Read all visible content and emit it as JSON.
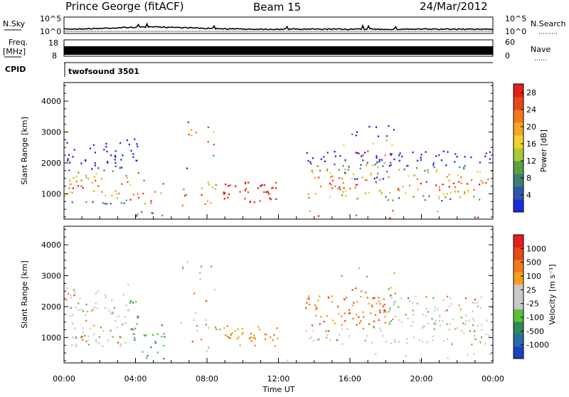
{
  "header": {
    "site": "Prince George (fitACF)",
    "beam": "Beam 15",
    "date": "24/Mar/2012"
  },
  "noise_panel": {
    "left_label": "N.Sky",
    "right_label": "N.Search",
    "left_ticks": [
      "10^5",
      "10^0"
    ],
    "right_ticks": [
      "10^5",
      "10^0"
    ]
  },
  "freq_panel": {
    "left_label_1": "Freq.",
    "left_label_2": "[MHz]",
    "left_ticks": [
      "18",
      "8"
    ],
    "right_label": "Nave",
    "right_ticks": [
      "60",
      "0"
    ]
  },
  "cpid_panel": {
    "label": "CPID",
    "program": "twofsound 3501"
  },
  "power_panel": {
    "ylabel": "Slant Range [km]",
    "colorbar_label": "Power [dB]"
  },
  "velocity_panel": {
    "ylabel": "Slant Range [km]",
    "colorbar_label": "Velocity [m s⁻¹]"
  },
  "x_axis": {
    "label": "Time UT"
  },
  "chart_data": [
    {
      "type": "heatmap",
      "title": "Power",
      "xlabel": "Time UT",
      "ylabel": "Slant Range [km]",
      "x_ticks": [
        "00:00",
        "04:00",
        "08:00",
        "12:00",
        "16:00",
        "20:00",
        "00:00"
      ],
      "xlim_hours": [
        0,
        24
      ],
      "y_ticks": [
        1000,
        2000,
        3000,
        4000
      ],
      "ylim": [
        180,
        4600
      ],
      "colorbar": {
        "label": "Power [dB]",
        "ticks": [
          4,
          8,
          12,
          16,
          20,
          24,
          28
        ],
        "range": [
          0,
          30
        ],
        "colors": [
          "#1d2bdb",
          "#2f56a8",
          "#3c7f72",
          "#5aa040",
          "#a7c93a",
          "#f2d22b",
          "#f5a623",
          "#f07a1b",
          "#e9471a",
          "#e0201a"
        ]
      }
    },
    {
      "type": "heatmap",
      "title": "Velocity",
      "xlabel": "Time UT",
      "ylabel": "Slant Range [km]",
      "x_ticks": [
        "00:00",
        "04:00",
        "08:00",
        "12:00",
        "16:00",
        "20:00",
        "00:00"
      ],
      "xlim_hours": [
        0,
        24
      ],
      "y_ticks": [
        1000,
        2000,
        3000,
        4000
      ],
      "ylim": [
        180,
        4600
      ],
      "colorbar": {
        "label": "Velocity [m s⁻¹]",
        "ticks": [
          1000,
          500,
          100,
          25,
          -25,
          -100,
          -500,
          -1000
        ],
        "colors": [
          "#1f3fbf",
          "#2a6aa8",
          "#2f8a5a",
          "#5cbf3a",
          "#c9c9c9",
          "#c9c9c9",
          "#f5a020",
          "#f07a1a",
          "#e74a1a",
          "#e0201a"
        ]
      }
    }
  ]
}
